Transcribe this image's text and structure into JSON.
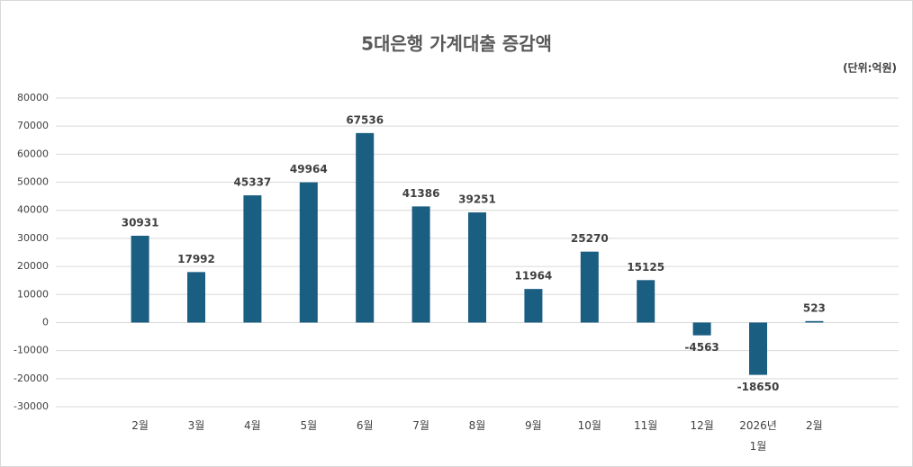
{
  "chart_data": {
    "type": "bar",
    "title": "5대은행 가계대출 증감액",
    "unit_label": "(단위:억원)",
    "categories": [
      null,
      "2월",
      "3월",
      "4월",
      "5월",
      "6월",
      "7월",
      "8월",
      "9월",
      "10월",
      "11월",
      "12월",
      "2026년\n1월",
      "2월",
      null
    ],
    "values": [
      null,
      30931,
      17992,
      45337,
      49964,
      67536,
      41386,
      39251,
      11964,
      25270,
      15125,
      -4563,
      -18650,
      523,
      null
    ],
    "color": "#1a5e82",
    "ylim": [
      -30000,
      80000
    ],
    "yticks": [
      -30000,
      -20000,
      -10000,
      0,
      10000,
      20000,
      30000,
      40000,
      50000,
      60000,
      70000,
      80000
    ],
    "grid": true
  }
}
